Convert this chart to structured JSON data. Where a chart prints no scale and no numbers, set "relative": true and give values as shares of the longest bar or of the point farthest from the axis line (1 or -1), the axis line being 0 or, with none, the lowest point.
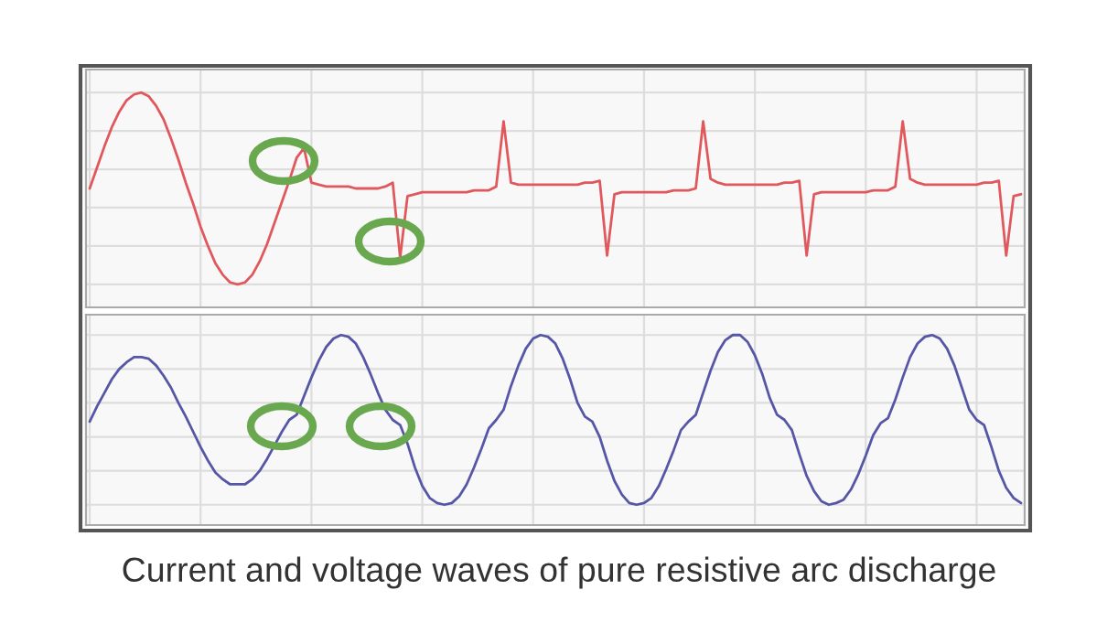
{
  "chart_data": [
    {
      "type": "line",
      "relative": true,
      "grid": true,
      "tick_labels": false,
      "categories": [
        null,
        null,
        null,
        null,
        null,
        null,
        null,
        null,
        null,
        null,
        null,
        null,
        null,
        null,
        null,
        null,
        null,
        null,
        null,
        null,
        null,
        null,
        null,
        null,
        null,
        null,
        null,
        null,
        null,
        null,
        null,
        null,
        null,
        null,
        null,
        null,
        null,
        null,
        null,
        null,
        null,
        null,
        null,
        null,
        null,
        null,
        null,
        null,
        null,
        null,
        null,
        null,
        null,
        null,
        null,
        null,
        null,
        null,
        null,
        null,
        null,
        null,
        null,
        null,
        null,
        null,
        null,
        null,
        null,
        null,
        null,
        null,
        null,
        null,
        null,
        null,
        null,
        null,
        null,
        null,
        null,
        null,
        null,
        null,
        null,
        null,
        null,
        null,
        null,
        null,
        null,
        null,
        null,
        null,
        null,
        null,
        null,
        null,
        null,
        null,
        null,
        null,
        null,
        null,
        null,
        null,
        null,
        null,
        null,
        null,
        null,
        null,
        null,
        null,
        null,
        null,
        null,
        null,
        null,
        null,
        null,
        null,
        null,
        null,
        null,
        null,
        null
      ],
      "series": [
        {
          "color": "#e0585c",
          "values": [
            0.5,
            0.61,
            0.72,
            0.82,
            0.9,
            0.96,
            0.99,
            1.0,
            0.98,
            0.93,
            0.86,
            0.76,
            0.65,
            0.53,
            0.42,
            0.3,
            0.2,
            0.11,
            0.05,
            0.01,
            0.0,
            0.01,
            0.05,
            0.12,
            0.21,
            0.32,
            0.43,
            0.54,
            0.66,
            0.71,
            0.53,
            0.52,
            0.51,
            0.51,
            0.51,
            0.51,
            0.5,
            0.5,
            0.5,
            0.5,
            0.51,
            0.53,
            0.14,
            0.46,
            0.47,
            0.48,
            0.48,
            0.48,
            0.48,
            0.48,
            0.48,
            0.48,
            0.49,
            0.49,
            0.49,
            0.51,
            0.85,
            0.53,
            0.52,
            0.52,
            0.52,
            0.52,
            0.52,
            0.52,
            0.52,
            0.52,
            0.52,
            0.53,
            0.53,
            0.54,
            0.15,
            0.47,
            0.48,
            0.48,
            0.48,
            0.48,
            0.48,
            0.48,
            0.48,
            0.49,
            0.49,
            0.49,
            0.5,
            0.85,
            0.55,
            0.53,
            0.52,
            0.52,
            0.52,
            0.52,
            0.52,
            0.52,
            0.52,
            0.52,
            0.53,
            0.53,
            0.54,
            0.15,
            0.47,
            0.48,
            0.48,
            0.48,
            0.48,
            0.48,
            0.48,
            0.48,
            0.49,
            0.49,
            0.49,
            0.51,
            0.85,
            0.55,
            0.53,
            0.52,
            0.52,
            0.52,
            0.52,
            0.52,
            0.52,
            0.52,
            0.52,
            0.53,
            0.53,
            0.54,
            0.15,
            0.46,
            0.47
          ]
        }
      ]
    },
    {
      "type": "line",
      "relative": true,
      "grid": true,
      "tick_labels": false,
      "categories": [
        null,
        null,
        null,
        null,
        null,
        null,
        null,
        null,
        null,
        null,
        null,
        null,
        null,
        null,
        null,
        null,
        null,
        null,
        null,
        null,
        null,
        null,
        null,
        null,
        null,
        null,
        null,
        null,
        null,
        null,
        null,
        null,
        null,
        null,
        null,
        null,
        null,
        null,
        null,
        null,
        null,
        null,
        null,
        null,
        null,
        null,
        null,
        null,
        null,
        null,
        null,
        null,
        null,
        null,
        null,
        null,
        null,
        null,
        null,
        null,
        null,
        null,
        null,
        null,
        null,
        null,
        null,
        null,
        null,
        null,
        null,
        null,
        null,
        null,
        null,
        null,
        null,
        null,
        null,
        null,
        null,
        null,
        null,
        null,
        null,
        null,
        null,
        null,
        null,
        null,
        null,
        null,
        null,
        null,
        null,
        null,
        null,
        null,
        null,
        null,
        null,
        null,
        null,
        null,
        null,
        null,
        null,
        null,
        null,
        null,
        null,
        null,
        null,
        null,
        null,
        null,
        null,
        null,
        null,
        null,
        null,
        null,
        null,
        null,
        null,
        null,
        null
      ],
      "series": [
        {
          "color": "#5656a6",
          "values": [
            0.49,
            0.58,
            0.66,
            0.74,
            0.8,
            0.84,
            0.87,
            0.87,
            0.86,
            0.82,
            0.76,
            0.69,
            0.6,
            0.52,
            0.43,
            0.34,
            0.26,
            0.19,
            0.15,
            0.12,
            0.12,
            0.12,
            0.15,
            0.2,
            0.27,
            0.35,
            0.43,
            0.5,
            0.53,
            0.64,
            0.75,
            0.85,
            0.93,
            0.98,
            1.0,
            0.99,
            0.95,
            0.87,
            0.77,
            0.66,
            0.56,
            0.5,
            0.47,
            0.36,
            0.22,
            0.11,
            0.04,
            0.01,
            0.0,
            0.01,
            0.05,
            0.12,
            0.22,
            0.33,
            0.45,
            0.5,
            0.56,
            0.7,
            0.82,
            0.92,
            0.98,
            1.0,
            0.99,
            0.95,
            0.86,
            0.74,
            0.6,
            0.52,
            0.49,
            0.4,
            0.26,
            0.14,
            0.06,
            0.01,
            0.0,
            0.01,
            0.04,
            0.11,
            0.21,
            0.32,
            0.44,
            0.49,
            0.53,
            0.66,
            0.79,
            0.9,
            0.97,
            1.0,
            1.0,
            0.96,
            0.88,
            0.77,
            0.63,
            0.53,
            0.5,
            0.44,
            0.3,
            0.17,
            0.08,
            0.02,
            0.0,
            0.01,
            0.03,
            0.09,
            0.18,
            0.29,
            0.41,
            0.48,
            0.51,
            0.62,
            0.75,
            0.87,
            0.95,
            0.99,
            1.0,
            0.98,
            0.92,
            0.82,
            0.69,
            0.56,
            0.5,
            0.47,
            0.34,
            0.2,
            0.1,
            0.04,
            0.01
          ]
        }
      ],
      "annotations": [
        "Current and voltage waves of pure resistive arc discharge"
      ]
    }
  ]
}
